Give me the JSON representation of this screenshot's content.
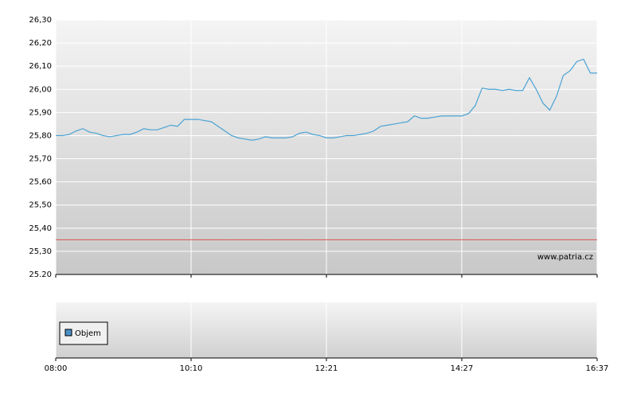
{
  "chart_data": {
    "type": "line",
    "series": [
      {
        "color": "#4aa3d4",
        "values": [
          25.8,
          25.8,
          25.805,
          25.82,
          25.83,
          25.815,
          25.81,
          25.8,
          25.795,
          25.8,
          25.805,
          25.805,
          25.815,
          25.83,
          25.825,
          25.825,
          25.835,
          25.845,
          25.84,
          25.87,
          25.87,
          25.87,
          25.865,
          25.86,
          25.84,
          25.82,
          25.8,
          25.79,
          25.785,
          25.78,
          25.785,
          25.795,
          25.79,
          25.79,
          25.79,
          25.795,
          25.81,
          25.815,
          25.805,
          25.8,
          25.79,
          25.79,
          25.795,
          25.8,
          25.8,
          25.805,
          25.81,
          25.82,
          25.84,
          25.845,
          25.85,
          25.855,
          25.86,
          25.885,
          25.875,
          25.875,
          25.88,
          25.885,
          25.885,
          25.885,
          25.885,
          25.895,
          25.93,
          26.005,
          26.0,
          26.0,
          25.995,
          26.0,
          25.995,
          25.995,
          26.05,
          26.0,
          25.94,
          25.91,
          25.97,
          26.06,
          26.08,
          26.12,
          26.13,
          26.07,
          26.07
        ]
      }
    ],
    "xlim": [
      0,
      80
    ],
    "xticks": [
      {
        "value": 0,
        "label": "08:00"
      },
      {
        "value": 20,
        "label": "10:10"
      },
      {
        "value": 40,
        "label": "12:21"
      },
      {
        "value": 60,
        "label": "14:27"
      },
      {
        "value": 80,
        "label": "16:37"
      }
    ],
    "ylim": [
      25.2,
      26.3
    ],
    "yticks": [
      {
        "value": 25.2,
        "label": "25.20"
      },
      {
        "value": 25.3,
        "label": "25,30"
      },
      {
        "value": 25.4,
        "label": "25,40"
      },
      {
        "value": 25.5,
        "label": "25,50"
      },
      {
        "value": 25.6,
        "label": "25,60"
      },
      {
        "value": 25.7,
        "label": "25,70"
      },
      {
        "value": 25.8,
        "label": "25,80"
      },
      {
        "value": 25.9,
        "label": "25,90"
      },
      {
        "value": 26.0,
        "label": "26,00"
      },
      {
        "value": 26.1,
        "label": "26,10"
      },
      {
        "value": 26.2,
        "label": "26,20"
      },
      {
        "value": 26.3,
        "label": "26,30"
      }
    ],
    "grid": true,
    "hlines": [
      {
        "value": 25.35,
        "color": "#d9534f"
      }
    ],
    "annotation": "www.patria.cz",
    "volume": {
      "name": "Objem",
      "color": "#4a90c8"
    }
  }
}
